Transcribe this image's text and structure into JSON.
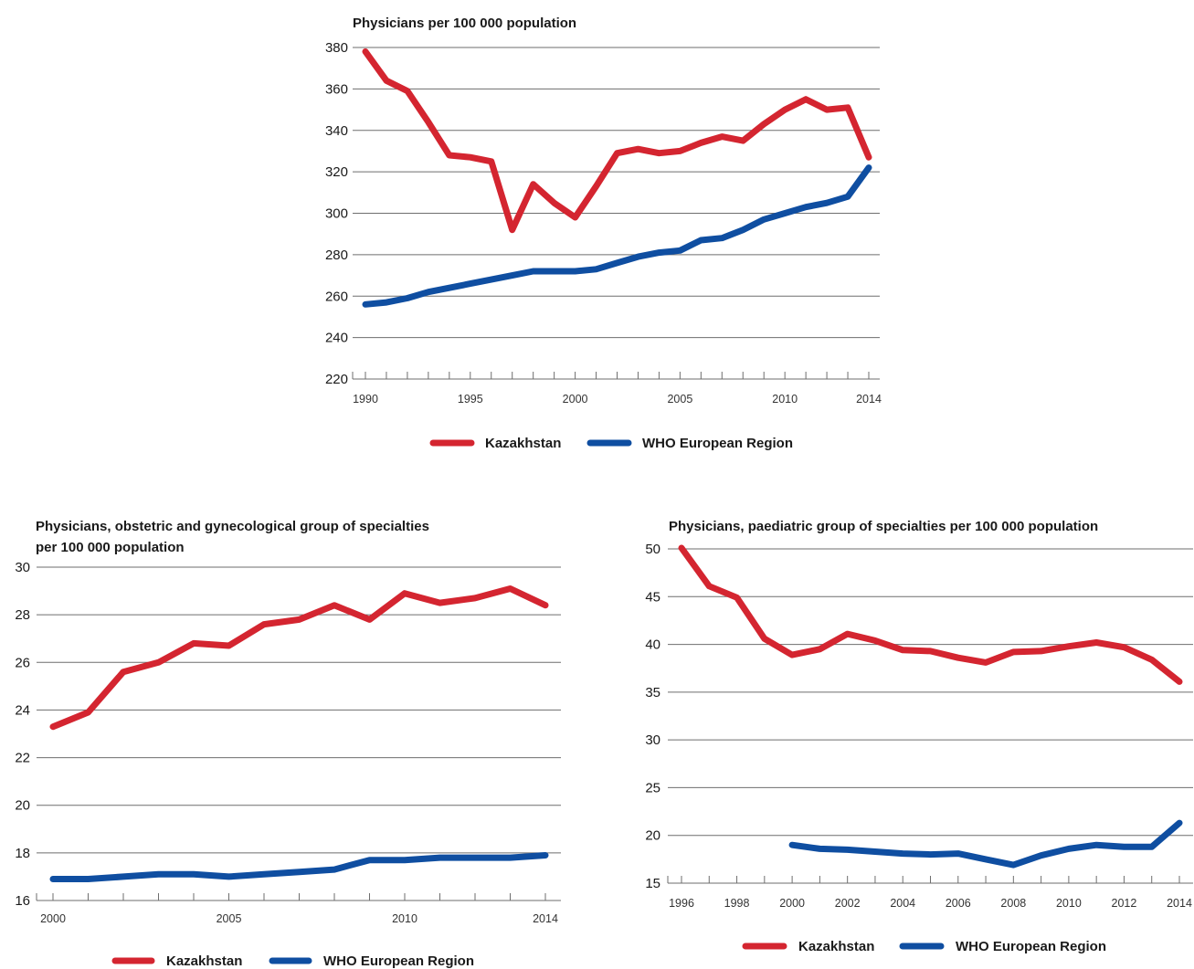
{
  "colors": {
    "kazakhstan": "#d42530",
    "who_europe": "#0f4ea1"
  },
  "chart_data": [
    {
      "type": "line",
      "title": "Physicians per 100 000 population",
      "xlabel": "",
      "ylabel": "",
      "xlim": [
        1990,
        2014
      ],
      "ylim": [
        220,
        380
      ],
      "yticks": [
        220,
        240,
        260,
        280,
        300,
        320,
        340,
        360,
        380
      ],
      "xtick_labels": [
        1990,
        1995,
        2000,
        2005,
        2010,
        2014
      ],
      "grid": true,
      "legend": "bottom",
      "series": [
        {
          "name": "Kazakhstan",
          "color": "#d42530",
          "x": [
            1990,
            1991,
            1992,
            1993,
            1994,
            1995,
            1996,
            1997,
            1998,
            1999,
            2000,
            2001,
            2002,
            2003,
            2004,
            2005,
            2006,
            2007,
            2008,
            2009,
            2010,
            2011,
            2012,
            2013,
            2014
          ],
          "values": [
            378,
            364,
            359,
            344,
            328,
            327,
            325,
            292,
            314,
            305,
            298,
            313,
            329,
            331,
            329,
            330,
            334,
            337,
            335,
            343,
            350,
            355,
            350,
            351,
            327
          ]
        },
        {
          "name": "WHO European Region",
          "color": "#0f4ea1",
          "x": [
            1990,
            1991,
            1992,
            1993,
            1994,
            1995,
            1996,
            1997,
            1998,
            1999,
            2000,
            2001,
            2002,
            2003,
            2004,
            2005,
            2006,
            2007,
            2008,
            2009,
            2010,
            2011,
            2012,
            2013,
            2014
          ],
          "values": [
            256,
            257,
            259,
            262,
            264,
            266,
            268,
            270,
            272,
            272,
            272,
            273,
            276,
            279,
            281,
            282,
            287,
            288,
            292,
            297,
            300,
            303,
            305,
            308,
            322
          ]
        }
      ]
    },
    {
      "type": "line",
      "title": "Physicians, obstetric and gynecological group of specialties per 100 000 population",
      "title_lines": [
        "Physicians, obstetric and gynecological group of specialties",
        "per 100 000 population"
      ],
      "xlabel": "",
      "ylabel": "",
      "xlim": [
        2000,
        2014
      ],
      "ylim": [
        16,
        30
      ],
      "yticks": [
        16,
        18,
        20,
        22,
        24,
        26,
        28,
        30
      ],
      "xtick_labels": [
        2000,
        2005,
        2010,
        2014
      ],
      "grid": true,
      "legend": "bottom",
      "series": [
        {
          "name": "Kazakhstan",
          "color": "#d42530",
          "x": [
            2000,
            2001,
            2002,
            2003,
            2004,
            2005,
            2006,
            2007,
            2008,
            2009,
            2010,
            2011,
            2012,
            2013,
            2014
          ],
          "values": [
            23.3,
            23.9,
            25.6,
            26.0,
            26.8,
            26.7,
            27.6,
            27.8,
            28.4,
            27.8,
            28.9,
            28.5,
            28.7,
            29.1,
            28.4
          ]
        },
        {
          "name": "WHO European Region",
          "color": "#0f4ea1",
          "x": [
            2000,
            2001,
            2002,
            2003,
            2004,
            2005,
            2006,
            2007,
            2008,
            2009,
            2010,
            2011,
            2012,
            2013,
            2014
          ],
          "values": [
            16.9,
            16.9,
            17.0,
            17.1,
            17.1,
            17.0,
            17.1,
            17.2,
            17.3,
            17.7,
            17.7,
            17.8,
            17.8,
            17.8,
            17.9
          ]
        }
      ]
    },
    {
      "type": "line",
      "title": "Physicians, paediatric group of specialties per 100 000 population",
      "xlabel": "",
      "ylabel": "",
      "xlim": [
        1996,
        2014
      ],
      "ylim": [
        15,
        50
      ],
      "yticks": [
        15,
        20,
        25,
        30,
        35,
        40,
        45,
        50
      ],
      "xtick_labels": [
        1996,
        1998,
        2000,
        2002,
        2004,
        2006,
        2008,
        2010,
        2012,
        2014
      ],
      "grid": true,
      "legend": "bottom",
      "series": [
        {
          "name": "Kazakhstan",
          "color": "#d42530",
          "x": [
            1996,
            1997,
            1998,
            1999,
            2000,
            2001,
            2002,
            2003,
            2004,
            2005,
            2006,
            2007,
            2008,
            2009,
            2010,
            2011,
            2012,
            2013,
            2014
          ],
          "values": [
            50.1,
            46.1,
            44.9,
            40.6,
            38.9,
            39.5,
            41.1,
            40.4,
            39.4,
            39.3,
            38.6,
            38.1,
            39.2,
            39.3,
            39.8,
            40.2,
            39.7,
            38.4,
            36.1
          ]
        },
        {
          "name": "WHO European Region",
          "color": "#0f4ea1",
          "x": [
            2000,
            2001,
            2002,
            2003,
            2004,
            2005,
            2006,
            2007,
            2008,
            2009,
            2010,
            2011,
            2012,
            2013,
            2014
          ],
          "values": [
            19.0,
            18.6,
            18.5,
            18.3,
            18.1,
            18.0,
            18.1,
            17.5,
            16.9,
            17.9,
            18.6,
            19.0,
            18.8,
            18.8,
            21.3
          ]
        }
      ]
    }
  ],
  "legends": [
    {
      "items": [
        {
          "label": "Kazakhstan"
        },
        {
          "label": "WHO European Region"
        }
      ]
    },
    {
      "items": [
        {
          "label": "Kazakhstan"
        },
        {
          "label": "WHO European Region"
        }
      ]
    },
    {
      "items": [
        {
          "label": "Kazakhstan"
        },
        {
          "label": "WHO European Region"
        }
      ]
    }
  ]
}
